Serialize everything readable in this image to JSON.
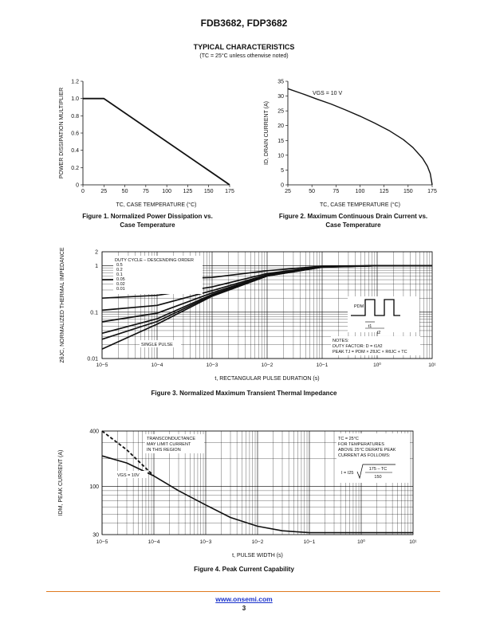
{
  "header": {
    "part_numbers": "FDB3682, FDP3682",
    "section_title": "TYPICAL CHARACTERISTICS",
    "condition": "(TC = 25°C unless otherwise noted)"
  },
  "colors": {
    "curve": "#111111",
    "grid": "#000000",
    "footer_rule": "#e07a1f",
    "link": "#1a33cc"
  },
  "footer": {
    "url": "www.onsemi.com",
    "page": "3"
  },
  "figures": {
    "fig1": {
      "caption_line1": "Figure 1. Normalized Power Dissipation vs.",
      "caption_line2": "Case Temperature"
    },
    "fig2": {
      "caption_line1": "Figure 2. Maximum Continuous Drain Current vs.",
      "caption_line2": "Case Temperature",
      "annotation": "VGS = 10 V"
    },
    "fig3": {
      "caption": "Figure 3. Normalized Maximum Transient Thermal Impedance",
      "legend_title": "DUTY CYCLE – DESCENDING ORDER",
      "single_pulse": "SINGLE PULSE",
      "notes_title": "NOTES:",
      "notes_line1": "DUTY FACTOR: D = t1/t2",
      "notes_line2": "PEAK TJ = PDM × ZθJC × RθJC + TC",
      "pdm": "PDM",
      "t1": "t1",
      "t2": "t2"
    },
    "fig4": {
      "caption": "Figure 4. Peak Current Capability",
      "note_line1": "TRANSCONDUCTANCE",
      "note_line2": "MAY LIMIT CURRENT",
      "note_line3": "IN THIS REGION",
      "vgs_label": "VGS = 10V",
      "tc_line1": "TC = 25°C",
      "tc_line2": "FOR TEMPERATURES",
      "tc_line3": "ABOVE 25°C DERATE PEAK",
      "tc_line4": "CURRENT AS FOLLOWS:",
      "formula_lhs": "I = I25",
      "formula_num": "175 – TC",
      "formula_den": "150"
    }
  },
  "chart_data": [
    {
      "id": "fig1",
      "type": "line",
      "xlabel": "TC, CASE TEMPERATURE (°C)",
      "ylabel": "POWER DISSIPATION MULTIPLIER",
      "xlim": [
        0,
        175
      ],
      "ylim": [
        0,
        1.2
      ],
      "xticks": [
        0,
        25,
        50,
        75,
        100,
        125,
        150,
        175
      ],
      "yticks": [
        0,
        0.2,
        0.4,
        0.6,
        0.8,
        1.0,
        1.2
      ],
      "ytick_labels": [
        "0",
        "0.2",
        "0.4",
        "0.6",
        "0.8",
        "1.0",
        "1.2"
      ],
      "grid": false,
      "series": [
        {
          "x": [
            0,
            25,
            175
          ],
          "y": [
            1.0,
            1.0,
            0
          ]
        }
      ]
    },
    {
      "id": "fig2",
      "type": "line",
      "xlabel": "TC, CASE TEMPERATURE (°C)",
      "ylabel": "ID, DRAIN CURRENT (A)",
      "xlim": [
        25,
        175
      ],
      "ylim": [
        0,
        35
      ],
      "xticks": [
        25,
        50,
        75,
        100,
        125,
        150,
        175
      ],
      "yticks": [
        0,
        5,
        10,
        15,
        20,
        25,
        30,
        35
      ],
      "grid": false,
      "series": [
        {
          "x": [
            25,
            40,
            55,
            70,
            85,
            100,
            115,
            130,
            145,
            155,
            165,
            170,
            173,
            175
          ],
          "y": [
            32.5,
            30.8,
            29.0,
            27.3,
            25.3,
            23.2,
            20.9,
            18.4,
            15.3,
            12.6,
            9.0,
            6.3,
            3.8,
            0
          ]
        }
      ]
    },
    {
      "id": "fig3",
      "type": "line",
      "xscale": "log",
      "yscale": "log",
      "xlabel": "t, RECTANGULAR PULSE DURATION (s)",
      "ylabel": "ZθJC, NORMALIZED THERMAL IMPEDANCE",
      "xlim": [
        1e-05,
        10
      ],
      "ylim": [
        0.01,
        2
      ],
      "xticks": [
        1e-05,
        0.0001,
        0.001,
        0.01,
        0.1,
        1,
        10
      ],
      "xtick_labels": [
        "10−5",
        "10−4",
        "10−3",
        "10−2",
        "10−1",
        "10⁰",
        "10¹"
      ],
      "yticks": [
        0.01,
        0.1,
        1,
        2
      ],
      "ytick_labels": [
        "0.01",
        "0.1",
        "1",
        "2"
      ],
      "grid": true,
      "legend_entries": [
        "0.5",
        "0.2",
        "0.1",
        "0.05",
        "0.02",
        "0.01"
      ],
      "series": [
        {
          "name": "0.5",
          "x": [
            1e-05,
            0.0001,
            0.001,
            0.01,
            0.1,
            1,
            10
          ],
          "y": [
            0.5,
            0.51,
            0.56,
            0.78,
            0.98,
            1.0,
            1.0
          ]
        },
        {
          "name": "0.2",
          "x": [
            1e-05,
            0.0001,
            0.001,
            0.01,
            0.1,
            1,
            10
          ],
          "y": [
            0.2,
            0.23,
            0.35,
            0.68,
            0.96,
            1.0,
            1.0
          ]
        },
        {
          "name": "0.1",
          "x": [
            1e-05,
            0.0001,
            0.001,
            0.01,
            0.1,
            1,
            10
          ],
          "y": [
            0.11,
            0.14,
            0.29,
            0.64,
            0.95,
            1.0,
            1.0
          ]
        },
        {
          "name": "0.05",
          "x": [
            1e-05,
            0.0001,
            0.001,
            0.01,
            0.1,
            1,
            10
          ],
          "y": [
            0.062,
            0.095,
            0.26,
            0.62,
            0.94,
            1.0,
            1.0
          ]
        },
        {
          "name": "0.02",
          "x": [
            1e-05,
            0.0001,
            0.001,
            0.01,
            0.1,
            1,
            10
          ],
          "y": [
            0.035,
            0.072,
            0.24,
            0.61,
            0.94,
            1.0,
            1.0
          ]
        },
        {
          "name": "0.01",
          "x": [
            1e-05,
            0.0001,
            0.001,
            0.01,
            0.1,
            1,
            10
          ],
          "y": [
            0.026,
            0.063,
            0.23,
            0.6,
            0.94,
            1.0,
            1.0
          ]
        },
        {
          "name": "SINGLE PULSE",
          "x": [
            1e-05,
            0.0001,
            0.001,
            0.01,
            0.1,
            1,
            10
          ],
          "y": [
            0.016,
            0.055,
            0.22,
            0.6,
            0.93,
            1.0,
            1.0
          ]
        }
      ]
    },
    {
      "id": "fig4",
      "type": "line",
      "xscale": "log",
      "yscale": "log",
      "xlabel": "t, PULSE WIDTH (s)",
      "ylabel": "IDM, PEAK CURRENT (A)",
      "xlim": [
        1e-05,
        10
      ],
      "ylim": [
        30,
        400
      ],
      "xticks": [
        1e-05,
        0.0001,
        0.001,
        0.01,
        0.1,
        1,
        10
      ],
      "xtick_labels": [
        "10−5",
        "10−4",
        "10−3",
        "10−2",
        "10−1",
        "10⁰",
        "10¹"
      ],
      "yticks": [
        30,
        100,
        400
      ],
      "grid": true,
      "series": [
        {
          "x": [
            1e-05,
            3e-05,
            0.0001,
            0.0003,
            0.001,
            0.003,
            0.01,
            0.03,
            0.1,
            1,
            10
          ],
          "y": [
            215,
            180,
            130,
            90,
            63,
            46,
            37,
            33,
            31.5,
            31.5,
            31.5
          ]
        },
        {
          "style": "dashed",
          "x": [
            1e-05,
            3e-05,
            0.0001
          ],
          "y": [
            400,
            250,
            130
          ]
        }
      ]
    }
  ]
}
